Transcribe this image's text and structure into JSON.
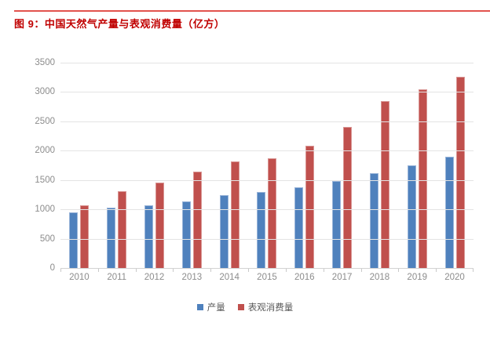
{
  "header": {
    "title": "图 9：中国天然气产量与表观消费量（亿方）",
    "title_color": "#c00000",
    "rule_color": "#e2534d"
  },
  "chart_data": {
    "type": "bar",
    "title": "中国天然气产量与表观消费量（亿方）",
    "categories": [
      "2010",
      "2011",
      "2012",
      "2013",
      "2014",
      "2015",
      "2016",
      "2017",
      "2018",
      "2019",
      "2020"
    ],
    "series": [
      {
        "name": "产量",
        "color": "#4f81bd",
        "border_color": "#9ab5d9",
        "values": [
          950,
          1030,
          1070,
          1135,
          1245,
          1290,
          1380,
          1480,
          1620,
          1745,
          1900
        ]
      },
      {
        "name": "表观消费量",
        "color": "#c0504d",
        "border_color": "#d99694",
        "values": [
          1075,
          1310,
          1450,
          1650,
          1820,
          1875,
          2090,
          2400,
          2840,
          3050,
          3260
        ]
      }
    ],
    "xlabel": "",
    "ylabel": "",
    "ylim": [
      0,
      3500
    ],
    "yticks": [
      0,
      500,
      1000,
      1500,
      2000,
      2500,
      3000,
      3500
    ],
    "grid": "horizontal",
    "legend_position": "bottom",
    "axis_text_color": "#8c8c8c",
    "legend_text_color": "#595959",
    "gridline_color": "#e4e4e4",
    "axis_line_color": "#d2d2d2"
  }
}
